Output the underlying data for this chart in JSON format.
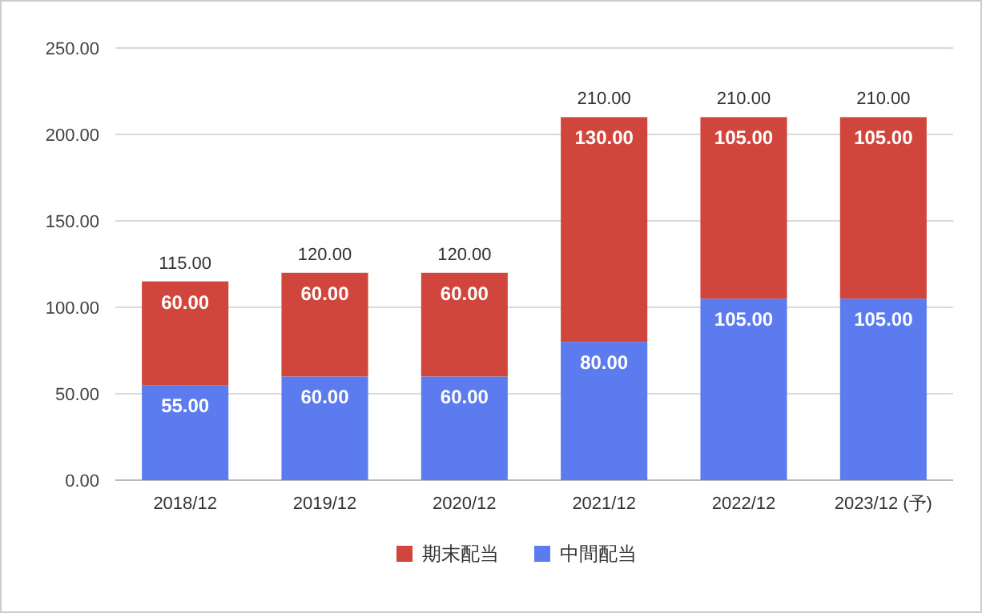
{
  "chart_data": {
    "type": "bar",
    "stacked": true,
    "categories": [
      "2018/12",
      "2019/12",
      "2020/12",
      "2021/12",
      "2022/12",
      "2023/12 (予)"
    ],
    "series": [
      {
        "name": "中間配当",
        "color": "#5b7bef",
        "values": [
          55,
          60,
          60,
          80,
          105,
          105
        ],
        "value_labels": [
          "55.00",
          "60.00",
          "60.00",
          "80.00",
          "105.00",
          "105.00"
        ]
      },
      {
        "name": "期末配当",
        "color": "#d0463c",
        "values": [
          60,
          60,
          60,
          130,
          105,
          105
        ],
        "value_labels": [
          "60.00",
          "60.00",
          "60.00",
          "130.00",
          "105.00",
          "105.00"
        ]
      }
    ],
    "totals": [
      "115.00",
      "120.00",
      "120.00",
      "210.00",
      "210.00",
      "210.00"
    ],
    "ylim": [
      0,
      250
    ],
    "yticks": [
      {
        "value": 0,
        "label": "0.00"
      },
      {
        "value": 50,
        "label": "50.00"
      },
      {
        "value": 100,
        "label": "100.00"
      },
      {
        "value": 150,
        "label": "150.00"
      },
      {
        "value": 200,
        "label": "200.00"
      },
      {
        "value": 250,
        "label": "250.00"
      }
    ],
    "grid": "y",
    "legend": "bottom"
  }
}
